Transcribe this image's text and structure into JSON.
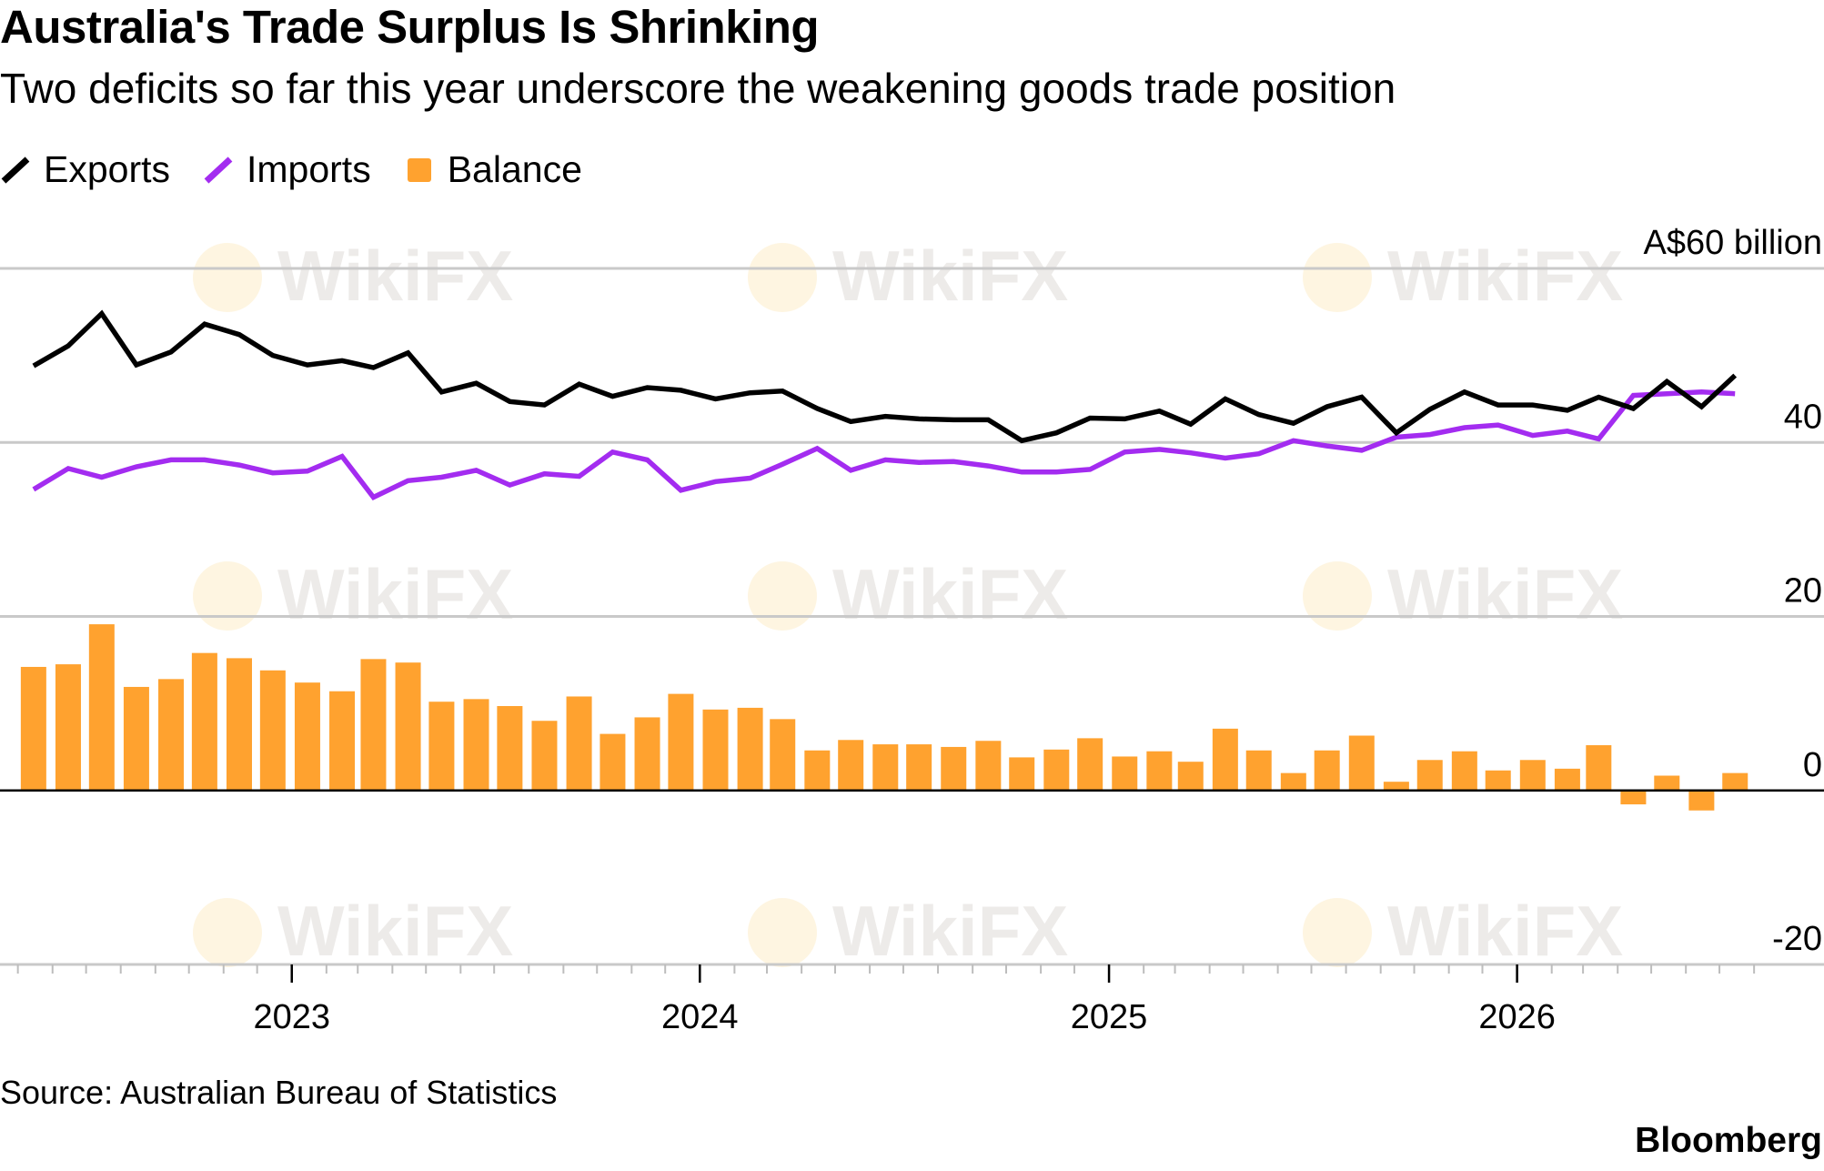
{
  "header": {
    "title": "Australia's Trade Surplus Is Shrinking",
    "subtitle": "Two deficits so far this year underscore the weakening goods trade position"
  },
  "legend": {
    "items": [
      {
        "label": "Exports",
        "color": "#000000",
        "icon": "line-swatch-icon"
      },
      {
        "label": "Imports",
        "color": "#a32cf0",
        "icon": "line-swatch-icon"
      },
      {
        "label": "Balance",
        "color": "#ffa22f",
        "icon": "square-swatch-icon"
      }
    ]
  },
  "footer": {
    "source": "Source: Australian Bureau of Statistics",
    "brand": "Bloomberg"
  },
  "watermark": "WikiFX",
  "chart_data": {
    "type": "line+bar",
    "unit_label": "A$60 billion",
    "ylim": [
      -20,
      60
    ],
    "yticks": [
      {
        "value": 60,
        "label": "A$60 billion"
      },
      {
        "value": 40,
        "label": "40"
      },
      {
        "value": 20,
        "label": "20"
      },
      {
        "value": 0,
        "label": "0"
      },
      {
        "value": -20,
        "label": "-20"
      }
    ],
    "x_start": "2022-05",
    "x_range": [
      "2022-04-15",
      "2026-08-31"
    ],
    "xticks": [
      {
        "date": "2023-01-01",
        "label": "2023"
      },
      {
        "date": "2024-01-01",
        "label": "2024"
      },
      {
        "date": "2025-01-01",
        "label": "2025"
      },
      {
        "date": "2026-01-01",
        "label": "2026"
      }
    ],
    "grid": true,
    "legend_position": "top-left",
    "series": [
      {
        "name": "Exports",
        "type": "line",
        "color": "#000000",
        "values": [
          48.8,
          51.1,
          54.8,
          48.9,
          50.4,
          53.6,
          52.4,
          50.0,
          48.9,
          49.4,
          48.6,
          50.3,
          45.8,
          46.8,
          44.7,
          44.3,
          46.7,
          45.3,
          46.3,
          46.0,
          45.0,
          45.7,
          45.9,
          43.9,
          42.4,
          43.0,
          42.7,
          42.6,
          42.6,
          40.2,
          41.1,
          42.8,
          42.7,
          43.6,
          42.1,
          45.0,
          43.2,
          42.2,
          44.1,
          45.2,
          41.1,
          43.8,
          45.8,
          44.3,
          44.3,
          43.7,
          45.2,
          43.9,
          47.0,
          44.1,
          47.7
        ]
      },
      {
        "name": "Imports",
        "type": "line",
        "color": "#a32cf0",
        "values": [
          34.6,
          37.0,
          36.0,
          37.2,
          38.0,
          38.0,
          37.4,
          36.5,
          36.7,
          38.4,
          33.7,
          35.6,
          36.0,
          36.8,
          35.1,
          36.4,
          36.1,
          38.9,
          38.0,
          34.5,
          35.5,
          35.9,
          37.5,
          39.3,
          36.8,
          38.0,
          37.7,
          37.8,
          37.3,
          36.6,
          36.6,
          36.9,
          38.9,
          39.2,
          38.8,
          38.2,
          38.7,
          40.2,
          39.6,
          39.1,
          40.6,
          40.9,
          41.7,
          42.0,
          40.8,
          41.3,
          40.4,
          45.4,
          45.6,
          45.8,
          45.6
        ]
      },
      {
        "name": "Balance",
        "type": "bar",
        "color": "#ffa22f",
        "values": [
          14.2,
          14.5,
          19.1,
          11.9,
          12.8,
          15.8,
          15.2,
          13.8,
          12.4,
          11.4,
          15.1,
          14.7,
          10.2,
          10.5,
          9.7,
          8.0,
          10.8,
          6.5,
          8.4,
          11.1,
          9.3,
          9.5,
          8.2,
          4.6,
          5.8,
          5.3,
          5.3,
          5.0,
          5.7,
          3.8,
          4.7,
          6.0,
          3.9,
          4.5,
          3.3,
          7.1,
          4.6,
          2.0,
          4.6,
          6.3,
          1.0,
          3.5,
          4.5,
          2.3,
          3.5,
          2.5,
          5.2,
          -1.6,
          1.7,
          -2.3,
          2.0
        ]
      }
    ]
  }
}
